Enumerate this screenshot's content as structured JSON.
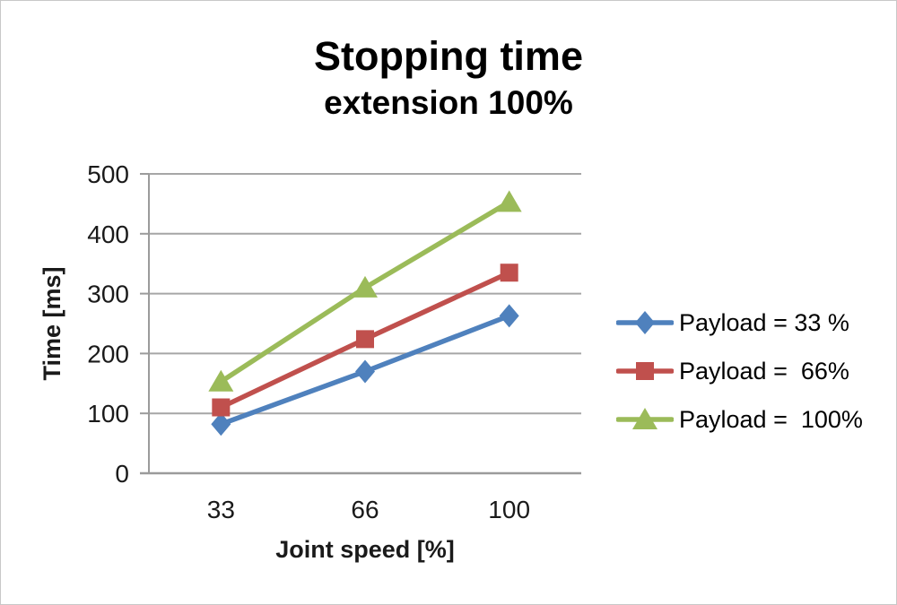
{
  "chart_data": {
    "type": "line",
    "title": "Stopping time",
    "subtitle": "extension 100%",
    "xlabel": "Joint speed [%]",
    "ylabel": "Time [ms]",
    "categories": [
      "33",
      "66",
      "100"
    ],
    "ylim": [
      0,
      500
    ],
    "yticks": [
      0,
      100,
      200,
      300,
      400,
      500
    ],
    "grid": "horizontal",
    "legend_position": "right",
    "series": [
      {
        "name": "Payload = 33 %",
        "marker": "diamond",
        "color": "#4F81BD",
        "values": [
          82,
          170,
          263
        ]
      },
      {
        "name": "Payload =  66%",
        "marker": "square",
        "color": "#C0504D",
        "values": [
          110,
          224,
          335
        ]
      },
      {
        "name": "Payload =  100%",
        "marker": "triangle",
        "color": "#9BBB59",
        "values": [
          153,
          310,
          453
        ]
      }
    ]
  },
  "colors": {
    "gridline": "#A6A6A6",
    "axis": "#9B9B9B",
    "text": "#1A1A1A",
    "background": "#FFFFFF",
    "frame_border": "#C8C8C8"
  }
}
